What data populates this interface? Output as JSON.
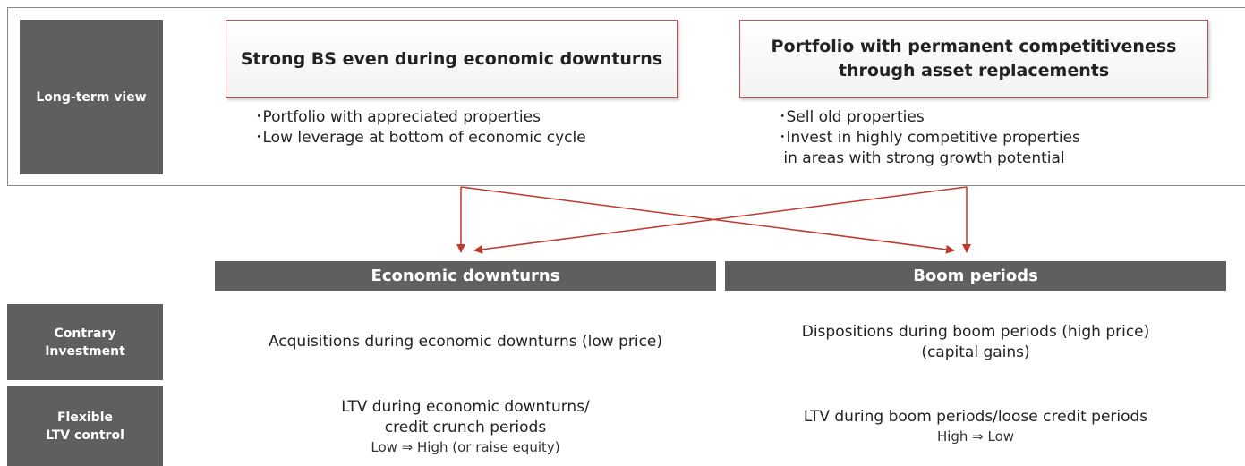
{
  "long_term": {
    "label": "Long-term view",
    "goals": [
      {
        "title": [
          "Strong BS even during economic downturns"
        ],
        "bullets": [
          "･Portfolio with appreciated properties",
          "･Low leverage at bottom of economic cycle"
        ]
      },
      {
        "title": [
          "Portfolio with permanent competitiveness",
          "through asset replacements"
        ],
        "bullets": [
          "･Sell old properties",
          "･Invest in highly competitive properties",
          " in areas with strong growth potential"
        ]
      }
    ]
  },
  "columns": [
    "Economic downturns",
    "Boom periods"
  ],
  "rows": [
    {
      "label": [
        "Contrary",
        "Investment"
      ],
      "cells": [
        {
          "lines": [
            "Acquisitions during economic downturns (low price)"
          ],
          "sub": []
        },
        {
          "lines": [
            "Dispositions during boom periods (high price)",
            "(capital gains)"
          ],
          "sub": []
        }
      ]
    },
    {
      "label": [
        "Flexible",
        "LTV control"
      ],
      "cells": [
        {
          "lines": [
            "LTV during economic downturns/",
            "credit crunch periods"
          ],
          "sub": [
            "Low ⇒ High (or raise equity)"
          ]
        },
        {
          "lines": [
            "LTV during boom periods/loose credit periods"
          ],
          "sub": [
            "High ⇒ Low"
          ]
        }
      ]
    }
  ]
}
